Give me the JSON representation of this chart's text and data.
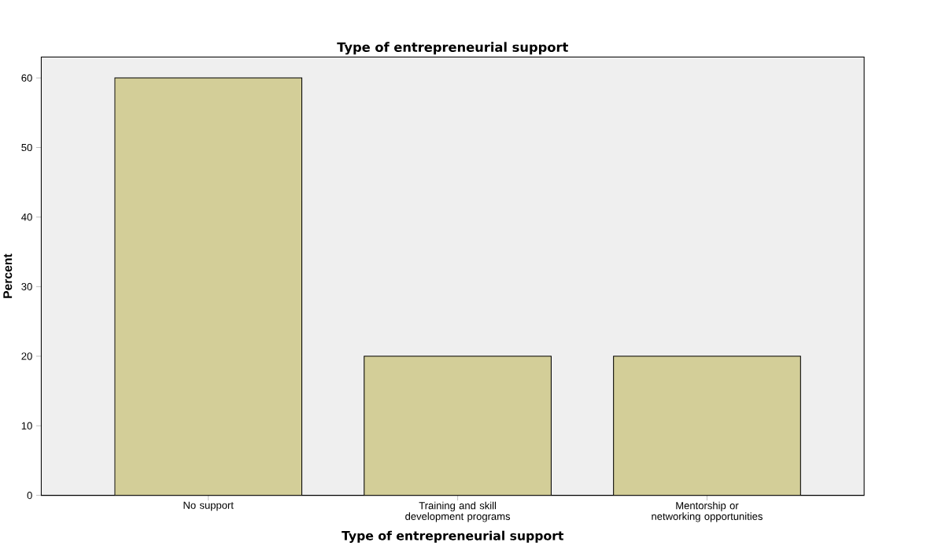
{
  "chart_data": {
    "type": "bar",
    "title": "Type of entrepreneurial support",
    "xlabel": "Type of entrepreneurial support",
    "ylabel": "Percent",
    "categories": [
      "No support",
      "Training and skill development programs",
      "Mentorship or networking opportunities"
    ],
    "values": [
      60,
      20,
      20
    ],
    "color": "#d3ce98",
    "ylim": [
      0,
      63
    ],
    "yticks": [
      0,
      10,
      20,
      30,
      40,
      50,
      60
    ]
  }
}
